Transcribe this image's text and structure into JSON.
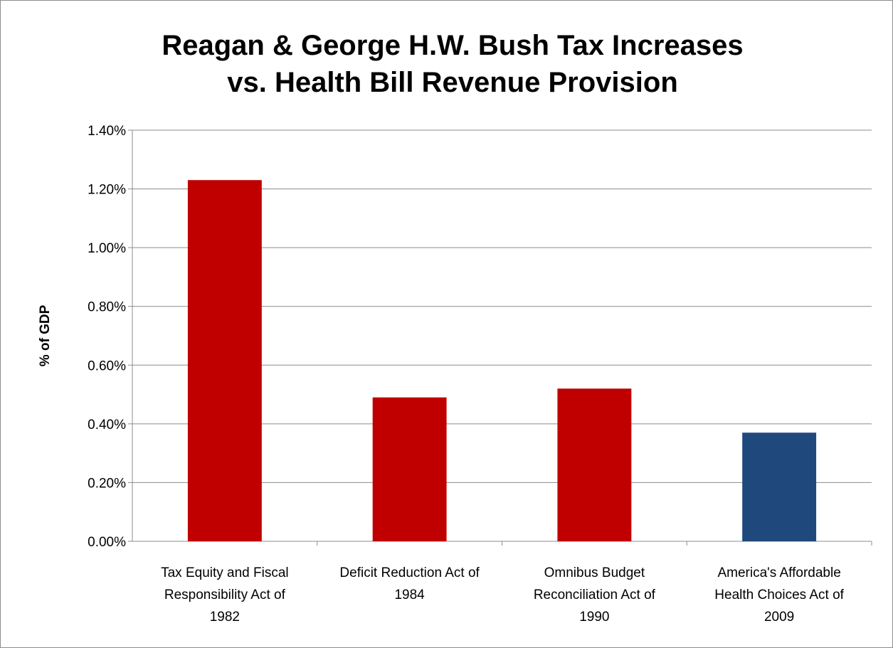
{
  "chart_data": {
    "type": "bar",
    "title": [
      "Reagan & George H.W. Bush Tax Increases",
      "vs. Health Bill Revenue Provision"
    ],
    "ylabel": "% of GDP",
    "xlabel": "",
    "ylim": [
      0,
      1.4
    ],
    "yticks": [
      "0.00%",
      "0.20%",
      "0.40%",
      "0.60%",
      "0.80%",
      "1.00%",
      "1.20%",
      "1.40%"
    ],
    "grid": true,
    "legend": "none",
    "categories": [
      [
        "Tax Equity and Fiscal",
        "Responsibility Act of",
        "1982"
      ],
      [
        "Deficit Reduction Act of",
        "1984"
      ],
      [
        "Omnibus Budget",
        "Reconciliation Act of",
        "1990"
      ],
      [
        "America's Affordable",
        "Health Choices Act of",
        "2009"
      ]
    ],
    "values": [
      1.23,
      0.49,
      0.52,
      0.37
    ],
    "colors": [
      "#c00000",
      "#c00000",
      "#c00000",
      "#1f497d"
    ]
  }
}
